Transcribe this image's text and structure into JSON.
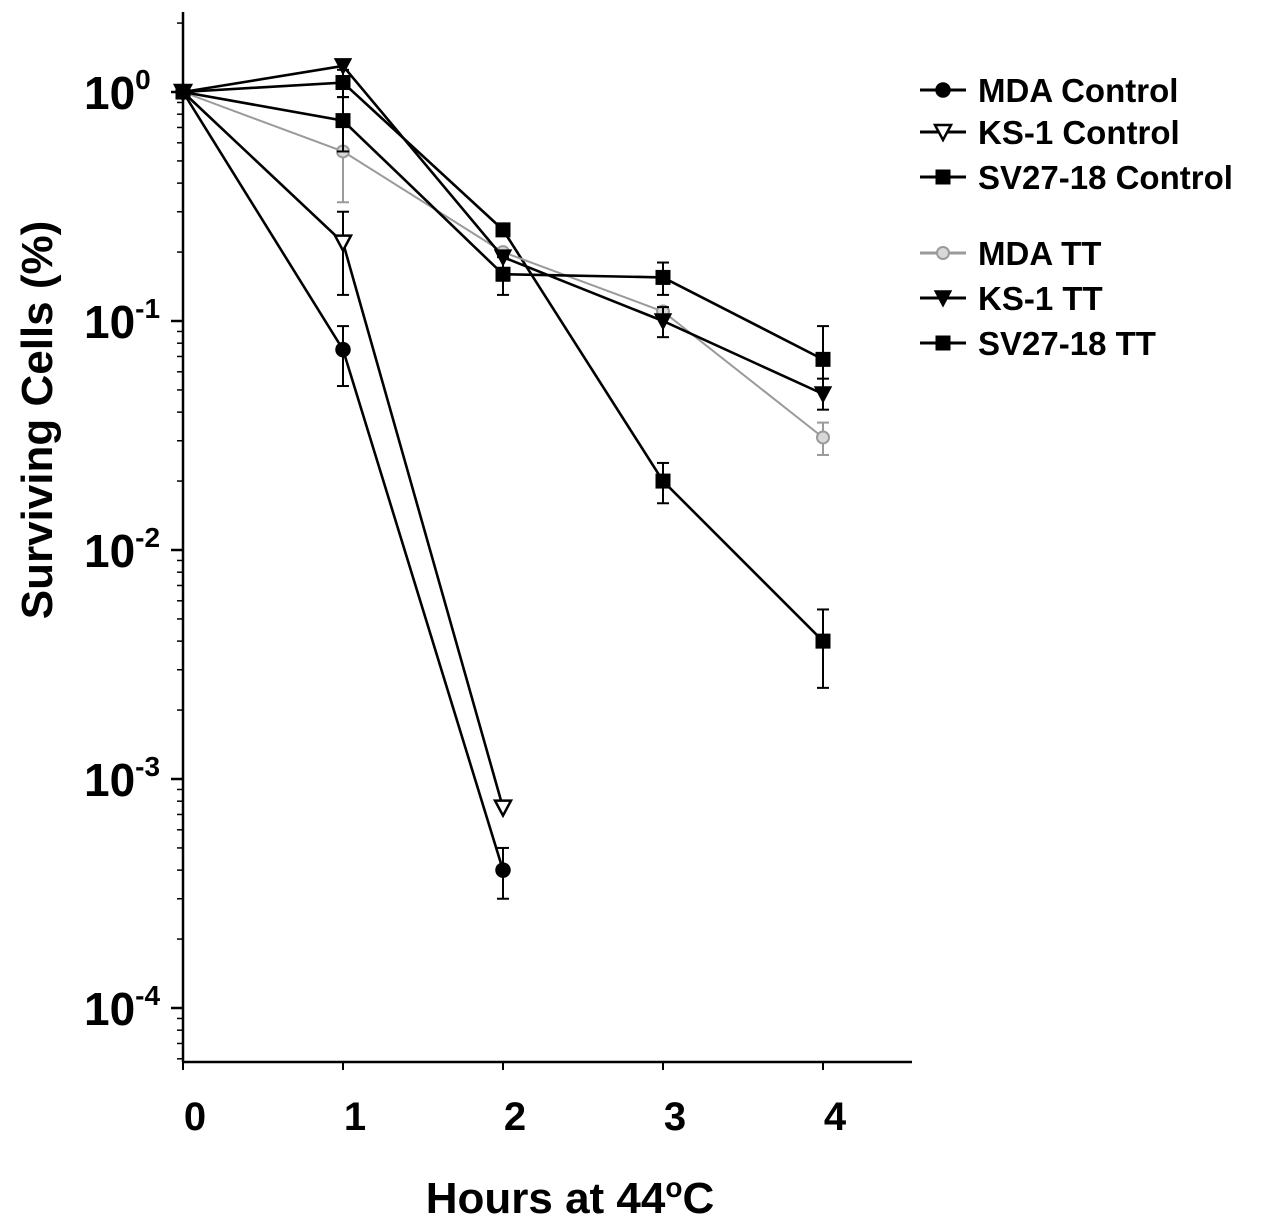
{
  "chart_data": {
    "type": "line",
    "title": "",
    "xlabel": "Hours at 44",
    "xlabel_sup": "o",
    "xlabel_suffix": "C",
    "ylabel": "Surviving Cells (%)",
    "y_scale": "log",
    "ylim": [
      5e-05,
      2.5
    ],
    "xlim": [
      0,
      4.5
    ],
    "grid": false,
    "legend_position": "top-right",
    "x_ticks": [
      {
        "value": 0,
        "label": "0"
      },
      {
        "value": 1,
        "label": "1"
      },
      {
        "value": 2,
        "label": "2"
      },
      {
        "value": 3,
        "label": "3"
      },
      {
        "value": 4,
        "label": "4"
      }
    ],
    "y_ticks": [
      {
        "value": 1,
        "base": "10",
        "exp": "0"
      },
      {
        "value": 0.1,
        "base": "10",
        "exp": "-1"
      },
      {
        "value": 0.01,
        "base": "10",
        "exp": "-2"
      },
      {
        "value": 0.001,
        "base": "10",
        "exp": "-3"
      },
      {
        "value": 0.0001,
        "base": "10",
        "exp": "-4"
      }
    ],
    "series": [
      {
        "name": "MDA Control",
        "marker": "circle",
        "color": "#000000",
        "points": [
          {
            "x": 0,
            "y": 1.0
          },
          {
            "x": 1,
            "y": 0.075,
            "err_low": 0.052,
            "err_high": 0.095
          },
          {
            "x": 2,
            "y": 0.0004,
            "err_low": 0.0003,
            "err_high": 0.0005
          }
        ]
      },
      {
        "name": "KS-1 Control",
        "marker": "triangle-down-open",
        "color": "#000000",
        "points": [
          {
            "x": 0,
            "y": 1.0
          },
          {
            "x": 1,
            "y": 0.22,
            "err_low": 0.13,
            "err_high": 0.3
          },
          {
            "x": 2,
            "y": 0.00075
          }
        ]
      },
      {
        "name": "SV27-18 Control",
        "marker": "square",
        "color": "#000000",
        "points": [
          {
            "x": 0,
            "y": 1.0
          },
          {
            "x": 1,
            "y": 1.1,
            "err_low": 0.95,
            "err_high": 1.25
          },
          {
            "x": 2,
            "y": 0.25
          },
          {
            "x": 3,
            "y": 0.02,
            "err_low": 0.016,
            "err_high": 0.024
          },
          {
            "x": 4,
            "y": 0.004,
            "err_low": 0.0025,
            "err_high": 0.0055
          }
        ]
      },
      {
        "name": "MDA TT",
        "marker": "circle-open",
        "color": "#9a9a9a",
        "points": [
          {
            "x": 0,
            "y": 1.0
          },
          {
            "x": 1,
            "y": 0.55,
            "err_low": 0.33,
            "err_high": 0.75
          },
          {
            "x": 2,
            "y": 0.2
          },
          {
            "x": 3,
            "y": 0.11
          },
          {
            "x": 4,
            "y": 0.031,
            "err_low": 0.026,
            "err_high": 0.036
          }
        ]
      },
      {
        "name": "KS-1 TT",
        "marker": "triangle-down",
        "color": "#000000",
        "points": [
          {
            "x": 0,
            "y": 1.0
          },
          {
            "x": 1,
            "y": 1.3
          },
          {
            "x": 2,
            "y": 0.19
          },
          {
            "x": 3,
            "y": 0.1,
            "err_low": 0.085,
            "err_high": 0.115
          },
          {
            "x": 4,
            "y": 0.048,
            "err_low": 0.041,
            "err_high": 0.056
          }
        ]
      },
      {
        "name": "SV27-18 TT",
        "marker": "square",
        "color": "#000000",
        "points": [
          {
            "x": 0,
            "y": 1.0
          },
          {
            "x": 1,
            "y": 0.75,
            "err_low": 0.55,
            "err_high": 0.95
          },
          {
            "x": 2,
            "y": 0.16,
            "err_low": 0.13,
            "err_high": 0.19
          },
          {
            "x": 3,
            "y": 0.155,
            "err_low": 0.13,
            "err_high": 0.18
          },
          {
            "x": 4,
            "y": 0.068,
            "err_low": 0.05,
            "err_high": 0.095
          }
        ]
      }
    ]
  }
}
